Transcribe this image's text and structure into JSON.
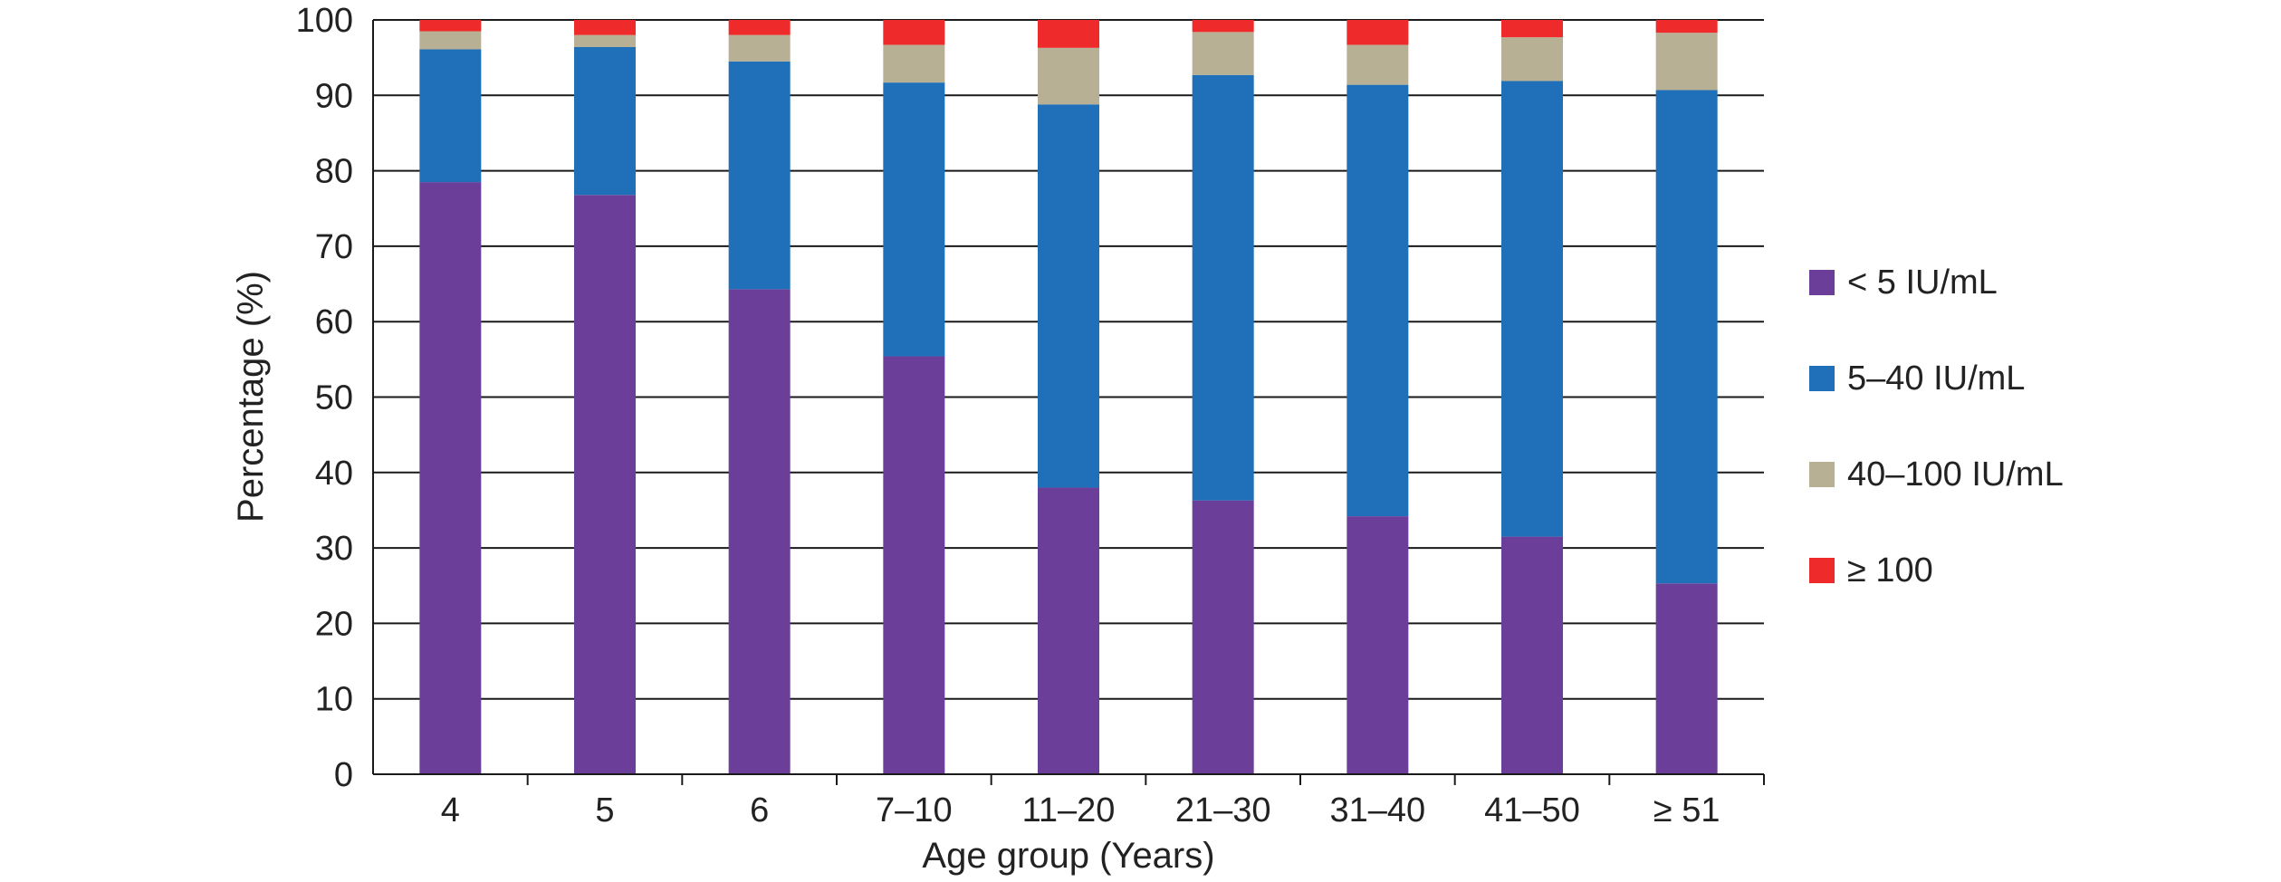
{
  "chart_data": {
    "type": "bar",
    "stacked": true,
    "title": "",
    "xlabel": "Age group (Years)",
    "ylabel": "Percentage (%)",
    "ylim": [
      0,
      100
    ],
    "yticks": [
      "0",
      "10",
      "20",
      "30",
      "40",
      "50",
      "60",
      "70",
      "80",
      "90",
      "100"
    ],
    "grid": true,
    "legend_position": "right",
    "categories": [
      "4",
      "5",
      "6",
      "7–10",
      "11–20",
      "21–30",
      "31–40",
      "41–50",
      "≥ 51"
    ],
    "series": [
      {
        "name": "< 5 IU/mL",
        "color": "#6b3f99",
        "values": [
          78.5,
          76.8,
          64.3,
          55.4,
          38.0,
          36.3,
          34.2,
          31.5,
          25.3
        ]
      },
      {
        "name": "5–40 IU/mL",
        "color": "#1f70b8",
        "values": [
          17.6,
          19.6,
          30.2,
          36.3,
          50.8,
          56.4,
          57.2,
          60.4,
          65.4
        ]
      },
      {
        "name": "40–100 IU/mL",
        "color": "#b8b094",
        "values": [
          2.4,
          1.6,
          3.5,
          5.0,
          7.5,
          5.7,
          5.3,
          5.8,
          7.6
        ]
      },
      {
        "name": "≥ 100",
        "color": "#ee2a2a",
        "values": [
          1.5,
          2.0,
          2.0,
          3.3,
          3.7,
          1.6,
          3.3,
          2.3,
          1.7
        ]
      }
    ]
  }
}
